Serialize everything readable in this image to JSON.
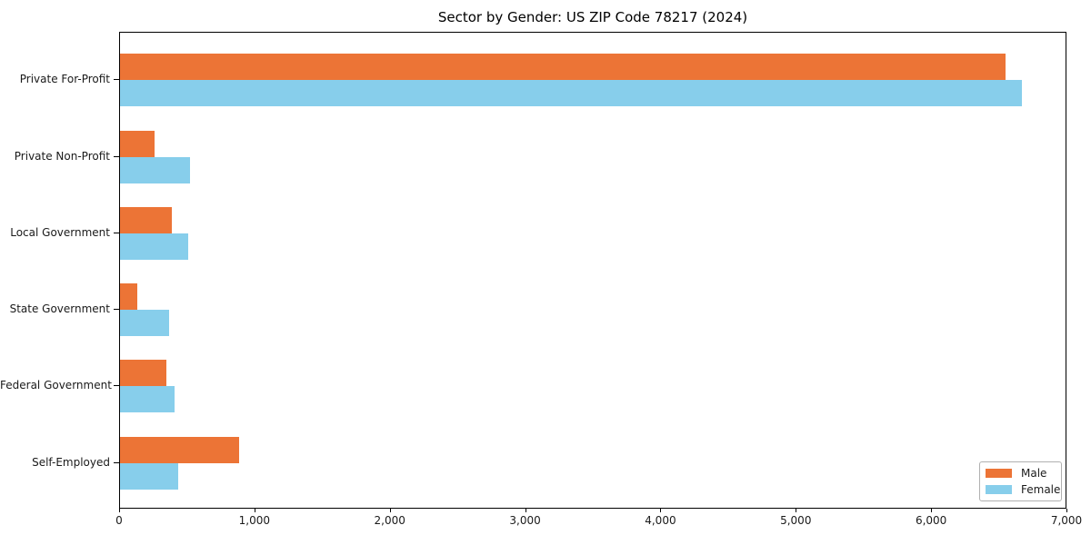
{
  "chart_data": {
    "type": "bar",
    "orientation": "horizontal",
    "title": "Sector by Gender: US ZIP Code 78217 (2024)",
    "categories": [
      "Private For-Profit",
      "Private Non-Profit",
      "Local Government",
      "State Government",
      "Federal Government",
      "Self-Employed"
    ],
    "series": [
      {
        "name": "Male",
        "color": "#ec7436",
        "values": [
          6545,
          255,
          380,
          130,
          345,
          880
        ]
      },
      {
        "name": "Female",
        "color": "#87ceeb",
        "values": [
          6665,
          520,
          505,
          365,
          405,
          430
        ]
      }
    ],
    "xlabel": "",
    "ylabel": "",
    "xlim": [
      0,
      7000
    ],
    "xticks": [
      0,
      1000,
      2000,
      3000,
      4000,
      5000,
      6000,
      7000
    ],
    "xtick_labels": [
      "0",
      "1,000",
      "2,000",
      "3,000",
      "4,000",
      "5,000",
      "6,000",
      "7,000"
    ],
    "grid": false,
    "legend_position": "lower right"
  }
}
